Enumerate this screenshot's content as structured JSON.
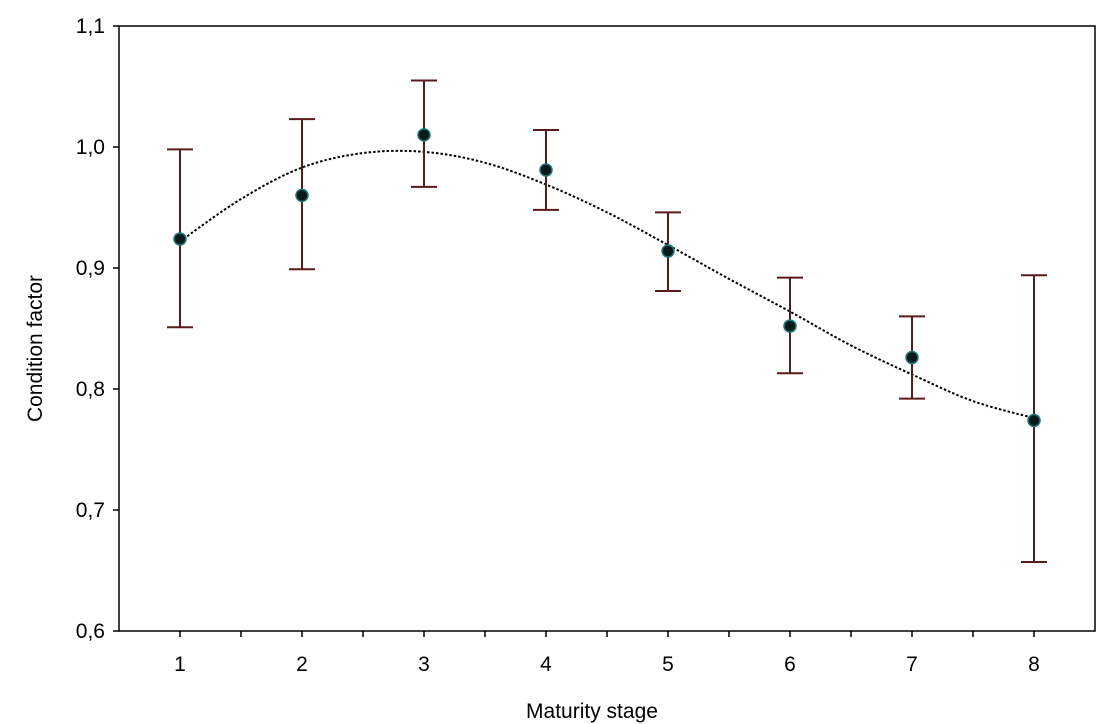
{
  "chart_data": {
    "type": "scatter",
    "xlabel": "Maturity stage",
    "ylabel": "Condition factor",
    "xlim": [
      0.5,
      8.5
    ],
    "ylim": [
      0.6,
      1.1
    ],
    "x_ticks": [
      1,
      2,
      3,
      4,
      5,
      6,
      7,
      8
    ],
    "x_tick_labels": [
      "1",
      "2",
      "3",
      "4",
      "5",
      "6",
      "7",
      "8"
    ],
    "y_ticks": [
      0.6,
      0.7,
      0.8,
      0.9,
      1.0,
      1.1
    ],
    "y_tick_labels": [
      "0,6",
      "0,7",
      "0,8",
      "0,9",
      "1,0",
      "1,1"
    ],
    "grid": false,
    "series": [
      {
        "x": [
          1,
          2,
          3,
          4,
          5,
          6,
          7,
          8
        ],
        "y": [
          0.924,
          0.96,
          1.01,
          0.981,
          0.914,
          0.852,
          0.826,
          0.774
        ],
        "error_low": [
          0.851,
          0.899,
          0.967,
          0.948,
          0.881,
          0.813,
          0.792,
          0.657
        ],
        "error_high": [
          0.998,
          1.023,
          1.055,
          1.014,
          0.946,
          0.892,
          0.86,
          0.894
        ]
      }
    ],
    "fit_curve": {
      "style": "dotted",
      "x": [
        1,
        1.5,
        2,
        2.5,
        3,
        3.5,
        4,
        4.5,
        5,
        5.5,
        6,
        6.5,
        7,
        7.5,
        8
      ],
      "y": [
        0.922,
        0.957,
        0.983,
        0.995,
        0.996,
        0.987,
        0.969,
        0.946,
        0.919,
        0.891,
        0.864,
        0.836,
        0.812,
        0.79,
        0.776
      ]
    },
    "colors": {
      "error_bar": "#5a1a1a",
      "marker_fill": "#0a1a1a",
      "marker_edge": "#1a7a7a",
      "fit_line": "#000000",
      "axis": "#000000"
    }
  }
}
